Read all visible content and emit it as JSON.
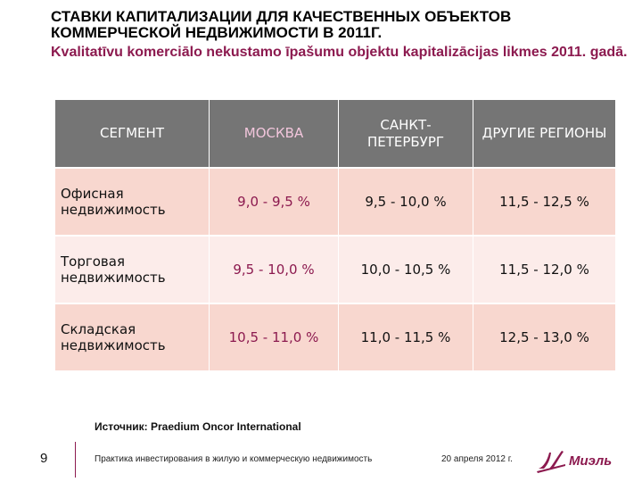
{
  "title": {
    "ru": "СТАВКИ КАПИТАЛИЗАЦИИ ДЛЯ КАЧЕСТВЕННЫХ ОБЪЕКТОВ КОММЕРЧЕСКОЙ НЕДВИЖИМОСТИ В 2011Г.",
    "lv": "Kvalitatīvu komerciālo nekustamo īpašumu objektu kapitalizācijas likmes 2011. gadā."
  },
  "table": {
    "headers": [
      "СЕГМЕНТ",
      "МОСКВА",
      "САНКТ-ПЕТЕРБУРГ",
      "ДРУГИЕ РЕГИОНЫ"
    ],
    "rows": [
      {
        "segment": "Офисная недвижимость",
        "moscow": "9,0 - 9,5 %",
        "spb": "9,5 - 10,0 %",
        "regions": "11,5 - 12,5 %"
      },
      {
        "segment": "Торговая недвижимость",
        "moscow": "9,5 - 10,0 %",
        "spb": "10,0 - 10,5 %",
        "regions": "11,5 - 12,0 %"
      },
      {
        "segment": "Складская недвижимость",
        "moscow": "10,5 - 11,0 %",
        "spb": "11,0 - 11,5 %",
        "regions": "12,5 - 13,0 %"
      }
    ]
  },
  "source": "Источник: Praedium Oncor International",
  "footer": {
    "page_number": "9",
    "text": "Практика инвестирования в жилую и коммерческую недвижимость",
    "date": "20 апреля 2012 г.",
    "logo_text": "Миэль"
  },
  "colors": {
    "accent": "#8c1a4f",
    "header_bg": "#757575",
    "row_odd": "#f8d7cf",
    "row_even": "#fcecea"
  }
}
